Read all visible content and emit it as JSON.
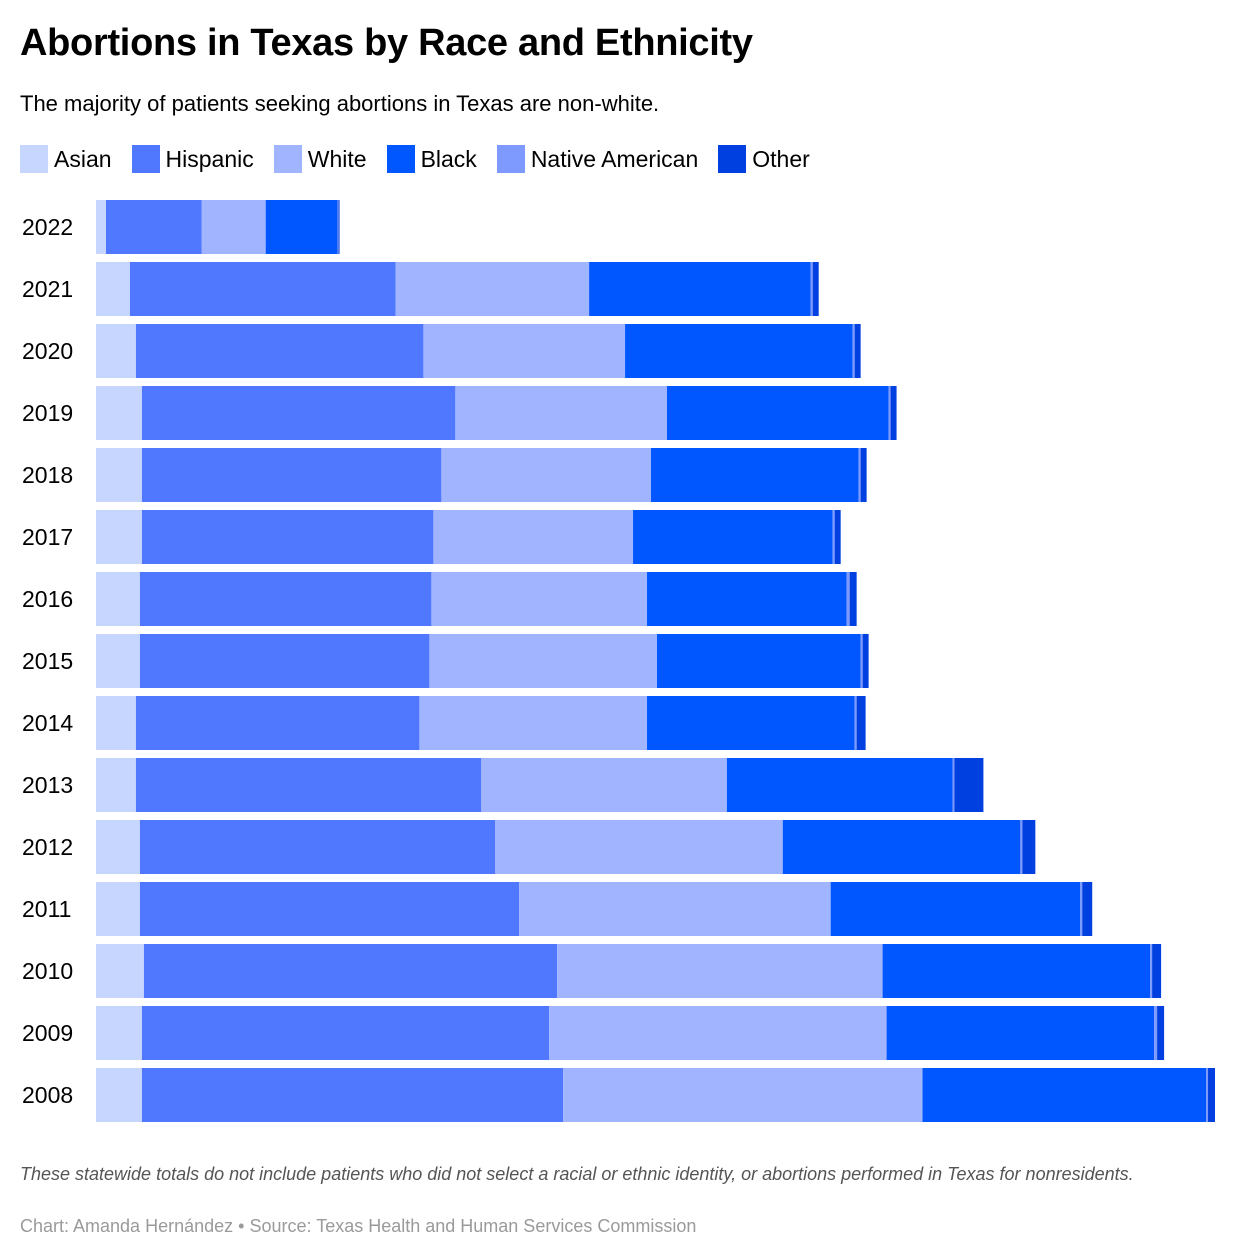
{
  "title": "Abortions in Texas by Race and Ethnicity",
  "subtitle": "The majority of patients seeking abortions in Texas are non-white.",
  "note": "These statewide totals do not include patients who did not select a racial or ethnic identity, or abortions performed in Texas for nonresidents.",
  "credit": {
    "author_label": "Chart: Amanda Hernández",
    "separator": "•",
    "source_label": "Source: Texas Health and Human Services Commission"
  },
  "colors": {
    "Asian": "#c7d6ff",
    "Hispanic": "#4f78ff",
    "White": "#a0b4ff",
    "Black": "#0057ff",
    "Native American": "#7f9aff",
    "Other": "#0040e0"
  },
  "chart_data": {
    "type": "bar",
    "orientation": "horizontal",
    "stacked": true,
    "categories": [
      "2022",
      "2021",
      "2020",
      "2019",
      "2018",
      "2017",
      "2016",
      "2015",
      "2014",
      "2013",
      "2012",
      "2011",
      "2010",
      "2009",
      "2008"
    ],
    "series": [
      {
        "name": "Asian",
        "values": [
          500,
          1700,
          2000,
          2300,
          2300,
          2300,
          2200,
          2200,
          2000,
          2000,
          2200,
          2200,
          2400,
          2300,
          2300
        ]
      },
      {
        "name": "Hispanic",
        "values": [
          4800,
          13300,
          14400,
          15700,
          15000,
          14600,
          14600,
          14500,
          14200,
          17300,
          17800,
          19000,
          20700,
          20400,
          21100
        ]
      },
      {
        "name": "White",
        "values": [
          3200,
          9700,
          10100,
          10600,
          10500,
          10000,
          10800,
          11400,
          11400,
          12300,
          14400,
          15600,
          16300,
          16900,
          18000
        ]
      },
      {
        "name": "Black",
        "values": [
          3600,
          11100,
          11400,
          11100,
          10400,
          10000,
          10000,
          10200,
          10400,
          11300,
          11900,
          12500,
          13400,
          13400,
          14200
        ]
      },
      {
        "name": "Native American",
        "values": [
          50,
          100,
          100,
          100,
          100,
          100,
          150,
          100,
          100,
          100,
          100,
          100,
          100,
          150,
          100
        ]
      },
      {
        "name": "Other",
        "values": [
          50,
          300,
          300,
          300,
          300,
          300,
          350,
          300,
          450,
          1450,
          650,
          500,
          450,
          350,
          350
        ]
      }
    ],
    "xlim": [
      0,
      56200
    ],
    "grid": false,
    "legend_position": "top-left",
    "show_axis_ticks": false
  }
}
